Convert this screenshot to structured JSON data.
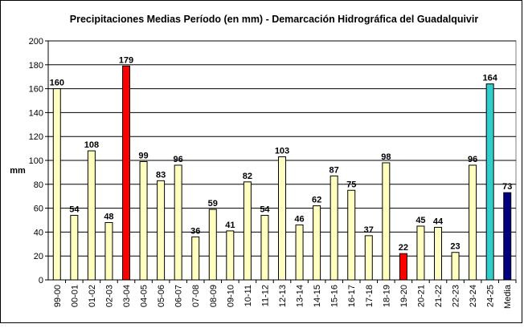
{
  "chart_data": {
    "type": "bar",
    "title": "Precipitaciones Medias Período (en mm) - Demarcación Hidrográfica del Guadalquivir",
    "xlabel": "",
    "ylabel": "mm",
    "ylim": [
      0,
      200
    ],
    "yticks": [
      0,
      20,
      40,
      60,
      80,
      100,
      120,
      140,
      160,
      180,
      200
    ],
    "grid": "horizontal",
    "legend": "none",
    "categories": [
      "99-00",
      "00-01",
      "01-02",
      "02-03",
      "03-04",
      "04-05",
      "05-06",
      "06-07",
      "07-08",
      "08-09",
      "09-10",
      "10-11",
      "11-12",
      "12-13",
      "13-14",
      "14-15",
      "15-16",
      "16-17",
      "17-18",
      "18-19",
      "19-20",
      "20-21",
      "21-22",
      "22-23",
      "23-24",
      "24-25",
      "Media"
    ],
    "values": [
      160,
      54,
      108,
      48,
      179,
      99,
      83,
      96,
      36,
      59,
      41,
      82,
      54,
      103,
      46,
      62,
      87,
      75,
      37,
      98,
      22,
      45,
      44,
      23,
      96,
      164,
      73
    ],
    "colors": {
      "default": "#ffffc0",
      "max": "#ff0000",
      "min": "#ff0000",
      "current": "#33cccc",
      "mean": "#000080"
    },
    "bar_colors": [
      "default",
      "default",
      "default",
      "default",
      "max",
      "default",
      "default",
      "default",
      "default",
      "default",
      "default",
      "default",
      "default",
      "default",
      "default",
      "default",
      "default",
      "default",
      "default",
      "default",
      "min",
      "default",
      "default",
      "default",
      "default",
      "current",
      "mean"
    ]
  }
}
